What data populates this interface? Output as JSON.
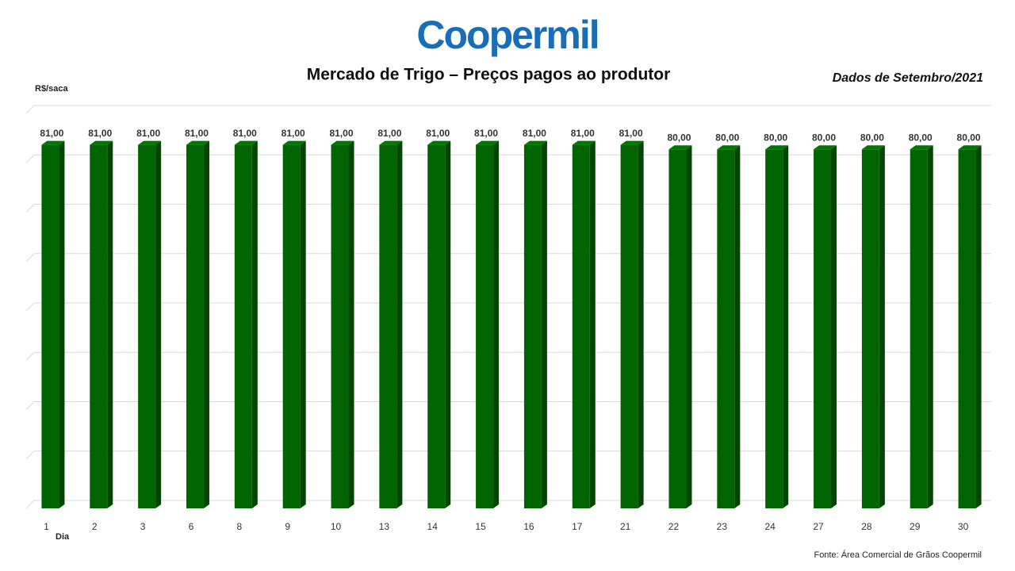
{
  "chart_data": {
    "type": "bar",
    "brand": "Coopermil",
    "title": "Mercado de Trigo – Preços pagos ao produtor",
    "subtitle": "Dados de Setembro/2021",
    "y_label": "R$/saca",
    "x_label": "Dia",
    "source": "Fonte:  Área Comercial de Grãos Coopermil",
    "categories": [
      "1",
      "2",
      "3",
      "6",
      "8",
      "9",
      "10",
      "13",
      "14",
      "15",
      "16",
      "17",
      "21",
      "22",
      "23",
      "24",
      "27",
      "28",
      "29",
      "30"
    ],
    "values": [
      81,
      81,
      81,
      81,
      81,
      81,
      81,
      81,
      81,
      81,
      81,
      81,
      81,
      80,
      80,
      80,
      80,
      80,
      80,
      80
    ],
    "value_labels": [
      "81,00",
      "81,00",
      "81,00",
      "81,00",
      "81,00",
      "81,00",
      "81,00",
      "81,00",
      "81,00",
      "81,00",
      "81,00",
      "81,00",
      "81,00",
      "80,00",
      "80,00",
      "80,00",
      "80,00",
      "80,00",
      "80,00",
      "80,00"
    ],
    "color": "#006400",
    "ylim": [
      0,
      88
    ],
    "yticks": [
      0,
      11,
      22,
      33,
      44,
      55,
      66,
      77,
      88
    ],
    "grid": true
  }
}
